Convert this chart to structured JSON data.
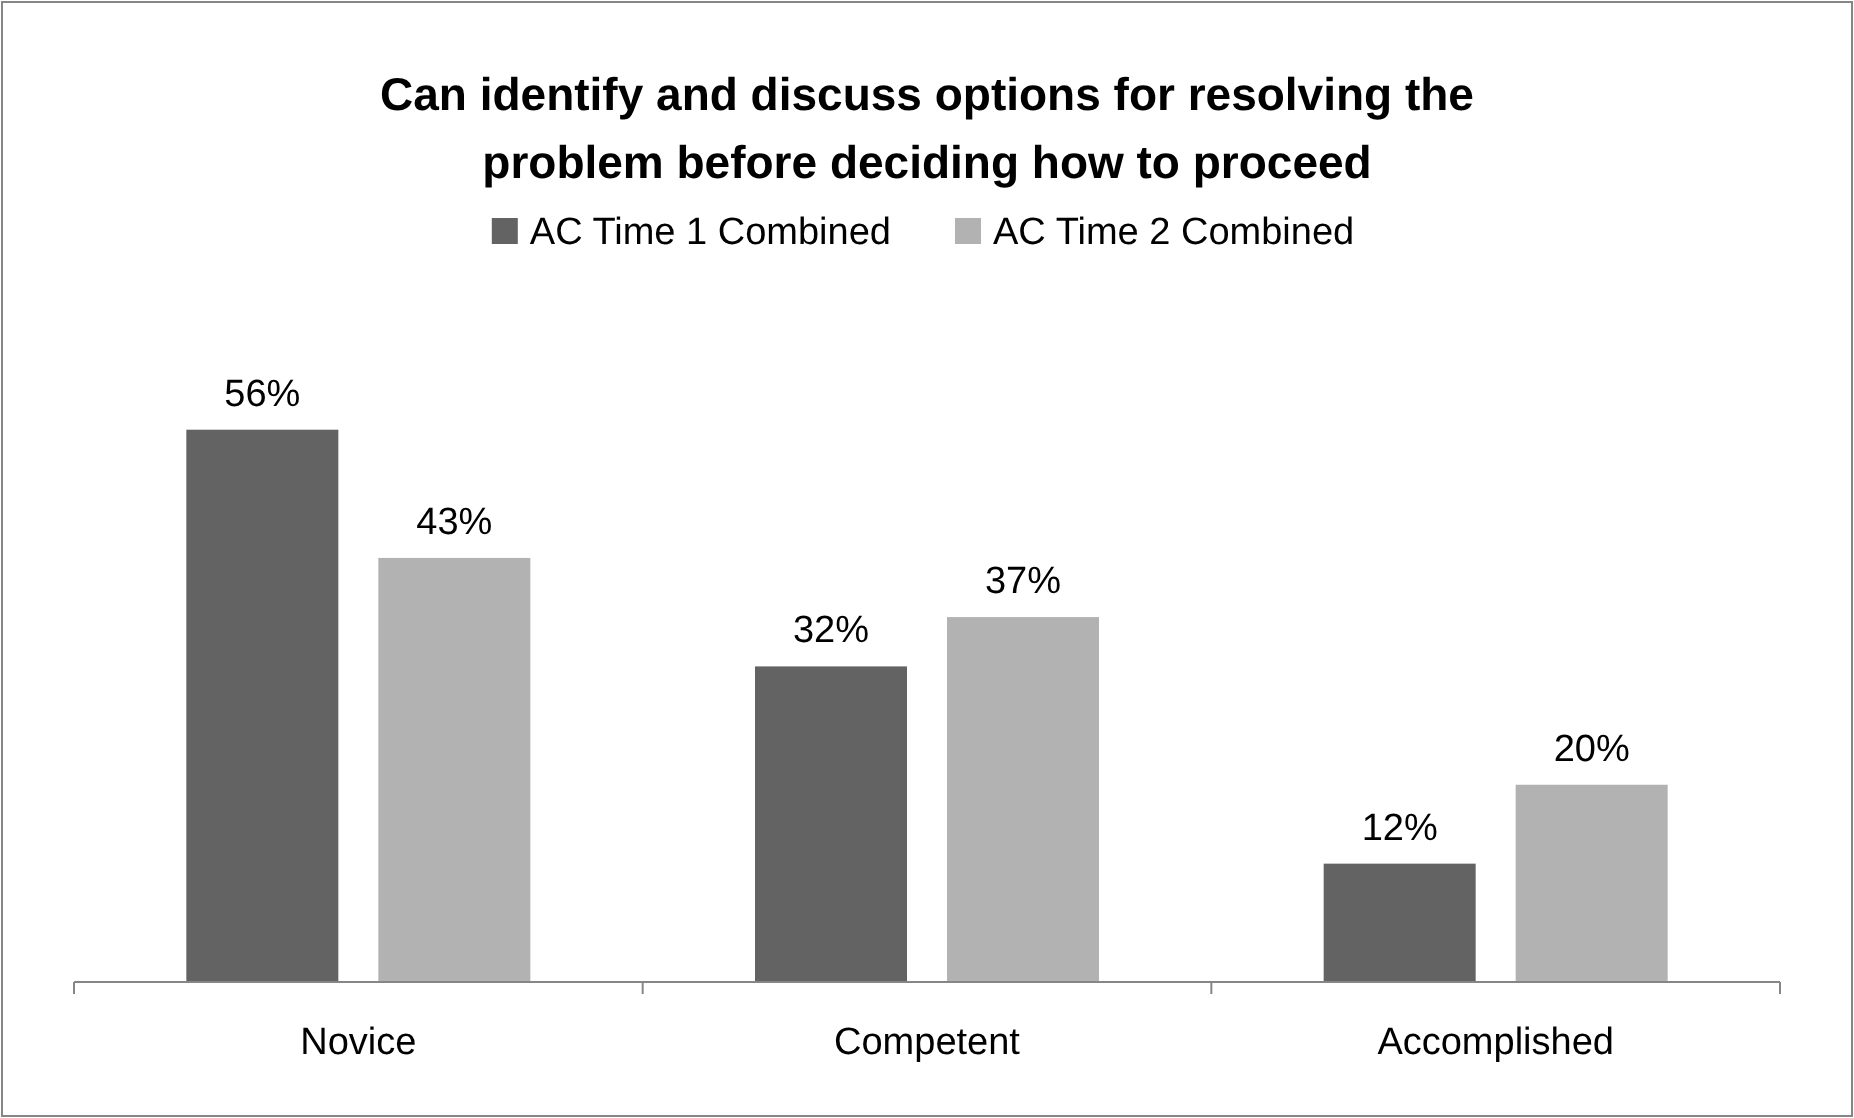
{
  "chart_data": {
    "type": "bar",
    "title": "Can identify and discuss options for resolving the\nproblem before deciding how to proceed",
    "categories": [
      "Novice",
      "Competent",
      "Accomplished"
    ],
    "series": [
      {
        "name": "AC Time 1 Combined",
        "color": "#636363",
        "values": [
          56,
          32,
          12
        ],
        "value_labels": [
          "56%",
          "32%",
          "12%"
        ]
      },
      {
        "name": "AC Time 2 Combined",
        "color": "#b2b2b2",
        "values": [
          43,
          37,
          20
        ],
        "value_labels": [
          "43%",
          "37%",
          "20%"
        ]
      }
    ],
    "legend": "top"
  }
}
